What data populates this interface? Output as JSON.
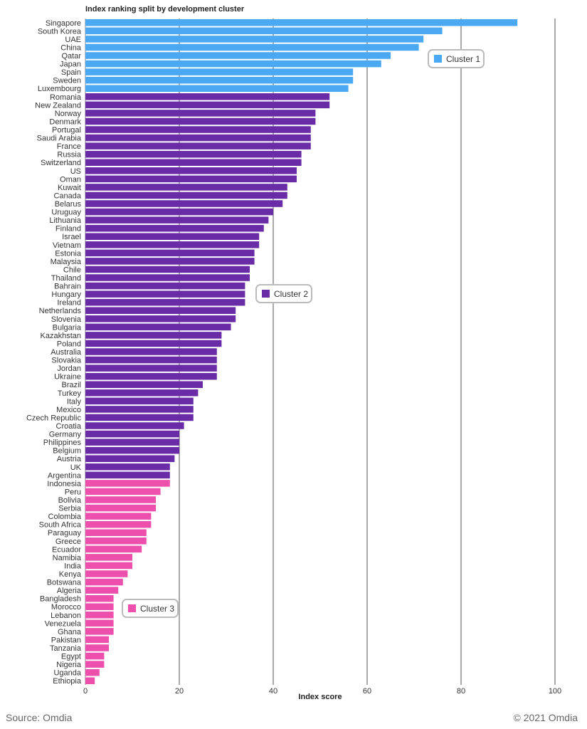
{
  "chart_data": {
    "type": "bar",
    "orientation": "horizontal",
    "title": "Index ranking split by development cluster",
    "xlabel": "Index score",
    "ylabel": "",
    "xlim": [
      0,
      100
    ],
    "xticks": [
      0,
      20,
      40,
      60,
      80,
      100
    ],
    "grid": "vertical",
    "series": [
      {
        "name": "Cluster 1",
        "color": "#4aa9f2"
      },
      {
        "name": "Cluster 2",
        "color": "#6a2ca6"
      },
      {
        "name": "Cluster 3",
        "color": "#ec4fac"
      }
    ],
    "categories": [
      "Singapore",
      "South Korea",
      "UAE",
      "China",
      "Qatar",
      "Japan",
      "Spain",
      "Sweden",
      "Luxembourg",
      "Romania",
      "New Zealand",
      "Norway",
      "Denmark",
      "Portugal",
      "Saudi Arabia",
      "France",
      "Russia",
      "Switzerland",
      "US",
      "Oman",
      "Kuwait",
      "Canada",
      "Belarus",
      "Uruguay",
      "Lithuania",
      "Finland",
      "Israel",
      "Vietnam",
      "Estonia",
      "Malaysia",
      "Chile",
      "Thailand",
      "Bahrain",
      "Hungary",
      "Ireland",
      "Netherlands",
      "Slovenia",
      "Bulgaria",
      "Kazakhstan",
      "Poland",
      "Australia",
      "Slovakia",
      "Jordan",
      "Ukraine",
      "Brazil",
      "Turkey",
      "Italy",
      "Mexico",
      "Czech Republic",
      "Croatia",
      "Germany",
      "Philippines",
      "Belgium",
      "Austria",
      "UK",
      "Argentina",
      "Indonesia",
      "Peru",
      "Bolivia",
      "Serbia",
      "Colombia",
      "South Africa",
      "Paraguay",
      "Greece",
      "Ecuador",
      "Namibia",
      "India",
      "Kenya",
      "Botswana",
      "Algeria",
      "Bangladesh",
      "Morocco",
      "Lebanon",
      "Venezuela",
      "Ghana",
      "Pakistan",
      "Tanzania",
      "Egypt",
      "Nigeria",
      "Uganda",
      "Ethiopia"
    ],
    "values": [
      92,
      76,
      72,
      71,
      65,
      63,
      57,
      57,
      56,
      52,
      52,
      49,
      49,
      48,
      48,
      48,
      46,
      46,
      45,
      45,
      43,
      43,
      42,
      40,
      39,
      38,
      37,
      37,
      36,
      36,
      35,
      35,
      34,
      34,
      34,
      32,
      32,
      31,
      29,
      29,
      28,
      28,
      28,
      28,
      25,
      24,
      23,
      23,
      23,
      21,
      20,
      20,
      20,
      19,
      18,
      18,
      18,
      16,
      15,
      15,
      14,
      14,
      13,
      13,
      12,
      10,
      10,
      9,
      8,
      7,
      6,
      6,
      6,
      6,
      6,
      5,
      5,
      4,
      4,
      3,
      2
    ],
    "cluster": [
      0,
      0,
      0,
      0,
      0,
      0,
      0,
      0,
      0,
      1,
      1,
      1,
      1,
      1,
      1,
      1,
      1,
      1,
      1,
      1,
      1,
      1,
      1,
      1,
      1,
      1,
      1,
      1,
      1,
      1,
      1,
      1,
      1,
      1,
      1,
      1,
      1,
      1,
      1,
      1,
      1,
      1,
      1,
      1,
      1,
      1,
      1,
      1,
      1,
      1,
      1,
      1,
      1,
      1,
      1,
      1,
      2,
      2,
      2,
      2,
      2,
      2,
      2,
      2,
      2,
      2,
      2,
      2,
      2,
      2,
      2,
      2,
      2,
      2,
      2,
      2,
      2,
      2,
      2,
      2,
      2
    ]
  },
  "footer": {
    "source": "Source: Omdia",
    "copyright": "© 2021 Omdia"
  }
}
